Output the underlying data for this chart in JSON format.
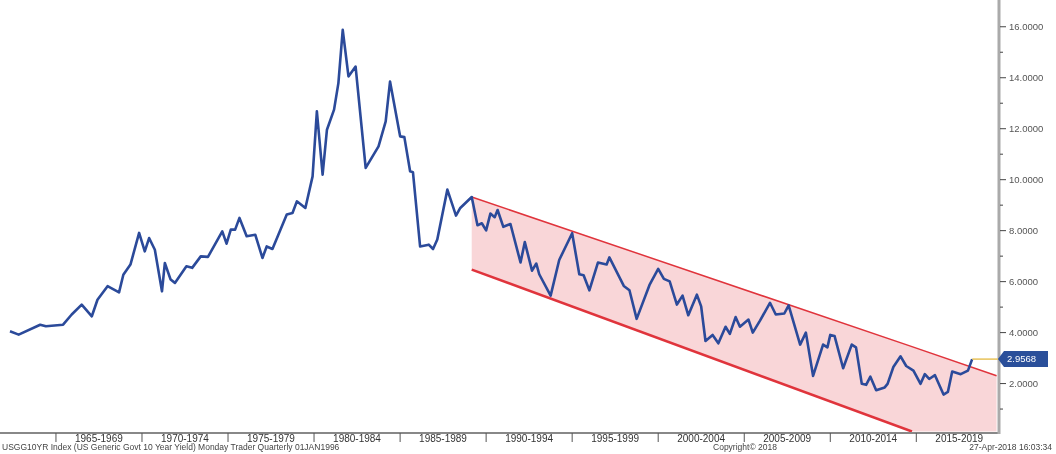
{
  "chart_data": {
    "type": "line",
    "xlim": [
      "1961-10",
      "2019-10"
    ],
    "ylim": [
      0.1,
      17.05
    ],
    "xticks": [
      {
        "value": "1965-01",
        "label": null
      },
      {
        "value": "1967-07",
        "label": "1965-1969"
      },
      {
        "value": "1970-01",
        "label": null
      },
      {
        "value": "1972-07",
        "label": "1970-1974"
      },
      {
        "value": "1975-01",
        "label": null
      },
      {
        "value": "1977-07",
        "label": "1975-1979"
      },
      {
        "value": "1980-01",
        "label": null
      },
      {
        "value": "1982-07",
        "label": "1980-1984"
      },
      {
        "value": "1985-01",
        "label": null
      },
      {
        "value": "1987-07",
        "label": "1985-1989"
      },
      {
        "value": "1990-01",
        "label": null
      },
      {
        "value": "1992-07",
        "label": "1990-1994"
      },
      {
        "value": "1995-01",
        "label": null
      },
      {
        "value": "1997-07",
        "label": "1995-1999"
      },
      {
        "value": "2000-01",
        "label": null
      },
      {
        "value": "2002-07",
        "label": "2000-2004"
      },
      {
        "value": "2005-01",
        "label": null
      },
      {
        "value": "2007-07",
        "label": "2005-2009"
      },
      {
        "value": "2010-01",
        "label": null
      },
      {
        "value": "2012-07",
        "label": "2010-2014"
      },
      {
        "value": "2015-01",
        "label": null
      },
      {
        "value": "2017-07",
        "label": "2015-2019"
      }
    ],
    "yticks": [
      {
        "value": 1,
        "label": null
      },
      {
        "value": 2,
        "label": "2.0000"
      },
      {
        "value": 3,
        "label": null
      },
      {
        "value": 4,
        "label": "4.0000"
      },
      {
        "value": 5,
        "label": null
      },
      {
        "value": 6,
        "label": "6.0000"
      },
      {
        "value": 7,
        "label": null
      },
      {
        "value": 8,
        "label": "8.0000"
      },
      {
        "value": 9,
        "label": null
      },
      {
        "value": 10,
        "label": "10.0000"
      },
      {
        "value": 11,
        "label": null
      },
      {
        "value": 12,
        "label": "12.0000"
      },
      {
        "value": 13,
        "label": null
      },
      {
        "value": 14,
        "label": "14.0000"
      },
      {
        "value": 15,
        "label": null
      },
      {
        "value": 16,
        "label": "16.0000"
      }
    ],
    "grid": false,
    "series": [
      {
        "color": "#e0343c",
        "x": [
          "1989-03",
          "2014-10",
          "2019-09"
        ],
        "values": [
          9.32,
          3.45,
          2.31
        ],
        "lower": [
          6.47,
          0.12,
          0.12
        ],
        "upper": [
          9.32,
          3.45,
          2.31
        ]
      },
      {
        "color": "#e0343c",
        "x": [
          "1989-03",
          "2014-10"
        ],
        "values": [
          6.47,
          0.12
        ]
      },
      {
        "color": "#2b4a9a",
        "x": [
          "1962-05",
          "1962-11",
          "1964-02",
          "1964-06",
          "1965-06",
          "1965-12",
          "1966-07",
          "1967-02",
          "1967-06",
          "1968-01",
          "1968-09",
          "1968-12",
          "1969-05",
          "1969-11",
          "1970-03",
          "1970-06",
          "1970-10",
          "1971-03",
          "1971-05",
          "1971-09",
          "1971-12",
          "1972-08",
          "1972-12",
          "1973-06",
          "1973-11",
          "1974-09",
          "1974-12",
          "1975-03",
          "1975-06",
          "1975-09",
          "1976-02",
          "1976-08",
          "1977-01",
          "1977-04",
          "1977-08",
          "1978-06",
          "1978-10",
          "1979-01",
          "1979-07",
          "1979-12",
          "1980-03",
          "1980-07",
          "1980-10",
          "1981-03",
          "1981-06",
          "1981-09",
          "1982-01",
          "1982-06",
          "1983-01",
          "1983-10",
          "1984-03",
          "1984-06",
          "1985-01",
          "1985-04",
          "1985-08",
          "1985-10",
          "1986-03",
          "1986-09",
          "1986-12",
          "1987-03",
          "1987-10",
          "1988-04",
          "1988-07",
          "1989-03",
          "1989-07",
          "1989-10",
          "1990-01",
          "1990-04",
          "1990-07",
          "1990-09",
          "1991-01",
          "1991-06",
          "1992-01",
          "1992-04",
          "1992-09",
          "1992-12",
          "1993-02",
          "1993-10",
          "1994-04",
          "1995-01",
          "1995-06",
          "1995-09",
          "1996-01",
          "1996-07",
          "1997-01",
          "1997-03",
          "1998-01",
          "1998-05",
          "1998-10",
          "1999-07",
          "2000-01",
          "2000-05",
          "2000-09",
          "2001-02",
          "2001-06",
          "2001-10",
          "2002-04",
          "2002-07",
          "2002-10",
          "2003-03",
          "2003-07",
          "2003-12",
          "2004-03",
          "2004-07",
          "2004-10",
          "2005-04",
          "2005-07",
          "2005-12",
          "2006-07",
          "2006-11",
          "2007-05",
          "2007-08",
          "2008-04",
          "2008-08",
          "2009-01",
          "2009-08",
          "2009-11",
          "2010-01",
          "2010-04",
          "2010-10",
          "2011-04",
          "2011-07",
          "2011-11",
          "2012-02",
          "2012-05",
          "2012-09",
          "2013-03",
          "2013-05",
          "2013-09",
          "2014-02",
          "2014-06",
          "2014-11",
          "2015-04",
          "2015-07",
          "2015-10",
          "2016-02",
          "2016-08",
          "2016-11",
          "2017-02",
          "2017-08",
          "2018-01",
          "2018-04"
        ],
        "values": [
          4.05,
          3.92,
          4.31,
          4.25,
          4.31,
          4.71,
          5.1,
          4.64,
          5.29,
          5.82,
          5.58,
          6.27,
          6.67,
          7.91,
          7.19,
          7.71,
          7.25,
          5.62,
          6.73,
          6.08,
          5.95,
          6.6,
          6.54,
          6.99,
          6.97,
          7.97,
          7.49,
          8.04,
          8.04,
          8.5,
          7.78,
          7.84,
          6.93,
          7.38,
          7.28,
          8.63,
          8.69,
          9.15,
          8.89,
          10.13,
          12.68,
          10.2,
          11.96,
          12.75,
          13.79,
          15.88,
          14.05,
          14.44,
          10.46,
          11.31,
          12.29,
          13.85,
          11.7,
          11.67,
          10.33,
          10.29,
          7.38,
          7.45,
          7.28,
          7.65,
          9.61,
          8.59,
          8.89,
          9.32,
          8.21,
          8.29,
          8.01,
          8.67,
          8.53,
          8.81,
          8.15,
          8.26,
          6.75,
          7.55,
          6.43,
          6.71,
          6.29,
          5.45,
          6.85,
          7.9,
          6.29,
          6.25,
          5.66,
          6.75,
          6.67,
          6.95,
          5.83,
          5.66,
          4.54,
          5.87,
          6.5,
          6.11,
          6.01,
          5.1,
          5.45,
          4.68,
          5.49,
          5.03,
          3.67,
          3.91,
          3.58,
          4.23,
          3.95,
          4.61,
          4.23,
          4.51,
          4.0,
          4.47,
          5.17,
          4.71,
          4.75,
          5.07,
          3.53,
          4.0,
          2.3,
          3.53,
          3.42,
          3.91,
          3.87,
          2.6,
          3.53,
          3.42,
          1.99,
          1.95,
          2.27,
          1.74,
          1.85,
          1.99,
          2.65,
          3.07,
          2.69,
          2.51,
          1.99,
          2.37,
          2.18,
          2.33,
          1.57,
          1.67,
          2.47,
          2.37,
          2.51,
          2.96
        ]
      }
    ],
    "annotations": [
      {
        "text": "2.9568",
        "x": "2018-04",
        "y": 2.96
      },
      "USGG10YR Index (US Generic Govt 10 Year Yield) Monday Trader  Quarterly 01JAN1996",
      "Copyright© 2018",
      "27-Apr-2018 16:03:34"
    ]
  }
}
